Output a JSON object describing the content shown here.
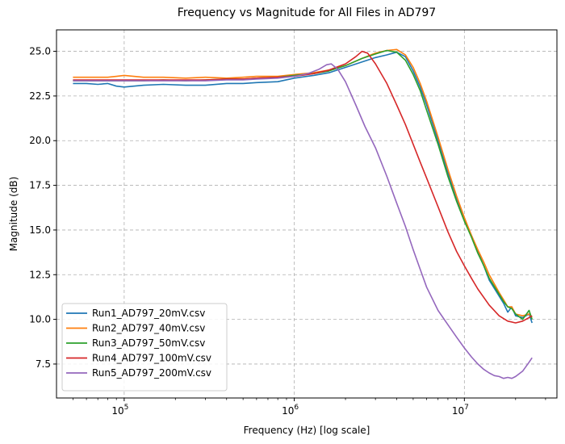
{
  "chart_data": {
    "type": "line",
    "title": "Frequency vs Magnitude for All Files in AD797",
    "xlabel": "Frequency (Hz) [log scale]",
    "ylabel": "Magnitude (dB)",
    "xscale": "log",
    "xlim": [
      40000,
      35000000
    ],
    "ylim": [
      5.6,
      26.2
    ],
    "grid": true,
    "legend_position": "lower-left",
    "x_ticks": [
      {
        "value": 100000,
        "base": "10",
        "exp": "5"
      },
      {
        "value": 1000000,
        "base": "10",
        "exp": "6"
      },
      {
        "value": 10000000,
        "base": "10",
        "exp": "7"
      }
    ],
    "y_ticks": [
      {
        "value": 7.5,
        "label": "7.5"
      },
      {
        "value": 10.0,
        "label": "10.0"
      },
      {
        "value": 12.5,
        "label": "12.5"
      },
      {
        "value": 15.0,
        "label": "15.0"
      },
      {
        "value": 17.5,
        "label": "17.5"
      },
      {
        "value": 20.0,
        "label": "20.0"
      },
      {
        "value": 22.5,
        "label": "22.5"
      },
      {
        "value": 25.0,
        "label": "25.0"
      }
    ],
    "series": [
      {
        "name": "Run1_AD797_20mV.csv",
        "color": "#1f77b4",
        "x": [
          50000,
          60000,
          70000,
          80000,
          90000,
          100000,
          130000,
          170000,
          230000,
          300000,
          400000,
          500000,
          600000,
          800000,
          1000000,
          1300000,
          1600000,
          2000000,
          2500000,
          3000000,
          3500000,
          4000000,
          4500000,
          5000000,
          5500000,
          6000000,
          7000000,
          8000000,
          9000000,
          10000000,
          11000000,
          12000000,
          13000000,
          14000000,
          16000000,
          17000000,
          18000000,
          19000000,
          20000000,
          22000000,
          24000000,
          25000000
        ],
        "y": [
          23.2,
          23.2,
          23.15,
          23.2,
          23.05,
          23.0,
          23.1,
          23.15,
          23.1,
          23.1,
          23.2,
          23.2,
          23.25,
          23.3,
          23.5,
          23.65,
          23.8,
          24.1,
          24.4,
          24.65,
          24.8,
          24.95,
          24.7,
          23.9,
          23.0,
          22.0,
          20.0,
          18.2,
          16.7,
          15.6,
          14.7,
          13.8,
          13.0,
          12.2,
          11.3,
          10.9,
          10.4,
          10.7,
          10.2,
          10.1,
          10.3,
          9.8
        ]
      },
      {
        "name": "Run2_AD797_40mV.csv",
        "color": "#ff7f0e",
        "x": [
          50000,
          60000,
          70000,
          80000,
          90000,
          100000,
          130000,
          170000,
          230000,
          300000,
          400000,
          500000,
          600000,
          800000,
          1000000,
          1300000,
          1600000,
          2000000,
          2500000,
          3000000,
          3500000,
          4000000,
          4500000,
          5000000,
          5500000,
          6000000,
          7000000,
          8000000,
          9000000,
          10000000,
          11000000,
          12000000,
          13000000,
          14000000,
          16000000,
          17000000,
          18000000,
          19000000,
          20000000,
          22000000,
          24000000,
          25000000
        ],
        "y": [
          23.55,
          23.55,
          23.55,
          23.55,
          23.6,
          23.65,
          23.55,
          23.55,
          23.5,
          23.55,
          23.5,
          23.55,
          23.6,
          23.6,
          23.7,
          23.8,
          23.95,
          24.2,
          24.6,
          24.9,
          25.05,
          25.1,
          24.8,
          24.1,
          23.2,
          22.2,
          20.2,
          18.4,
          16.9,
          15.7,
          14.7,
          13.9,
          13.2,
          12.5,
          11.5,
          11.1,
          10.7,
          10.7,
          10.3,
          10.2,
          10.3,
          10.1
        ]
      },
      {
        "name": "Run3_AD797_50mV.csv",
        "color": "#2ca02c",
        "x": [
          50000,
          60000,
          70000,
          80000,
          90000,
          100000,
          130000,
          170000,
          230000,
          300000,
          400000,
          500000,
          600000,
          800000,
          1000000,
          1300000,
          1600000,
          2000000,
          2500000,
          3000000,
          3500000,
          4000000,
          4500000,
          5000000,
          5500000,
          6000000,
          7000000,
          8000000,
          9000000,
          10000000,
          11000000,
          12000000,
          13000000,
          14000000,
          16000000,
          17000000,
          18000000,
          19000000,
          20000000,
          22000000,
          24000000,
          25000000
        ],
        "y": [
          23.35,
          23.35,
          23.35,
          23.35,
          23.35,
          23.35,
          23.35,
          23.4,
          23.35,
          23.4,
          23.45,
          23.45,
          23.5,
          23.55,
          23.65,
          23.75,
          23.9,
          24.2,
          24.6,
          24.85,
          25.05,
          24.95,
          24.5,
          23.7,
          22.8,
          21.7,
          19.8,
          18.0,
          16.6,
          15.5,
          14.6,
          13.7,
          13.0,
          12.3,
          11.4,
          11.0,
          10.7,
          10.6,
          10.3,
          10.0,
          10.5,
          10.0
        ]
      },
      {
        "name": "Run4_AD797_100mV.csv",
        "color": "#d62728",
        "x": [
          50000,
          60000,
          70000,
          80000,
          90000,
          100000,
          130000,
          170000,
          230000,
          300000,
          400000,
          500000,
          600000,
          800000,
          1000000,
          1300000,
          1600000,
          2000000,
          2300000,
          2500000,
          2700000,
          3000000,
          3500000,
          4000000,
          4500000,
          5000000,
          5500000,
          6000000,
          7000000,
          8000000,
          9000000,
          10000000,
          11000000,
          12000000,
          14000000,
          16000000,
          18000000,
          20000000,
          22000000,
          24000000,
          25000000
        ],
        "y": [
          23.4,
          23.4,
          23.4,
          23.4,
          23.4,
          23.4,
          23.4,
          23.4,
          23.4,
          23.4,
          23.45,
          23.45,
          23.5,
          23.55,
          23.6,
          23.75,
          23.95,
          24.3,
          24.7,
          25.0,
          24.9,
          24.3,
          23.2,
          22.0,
          20.9,
          19.8,
          18.8,
          17.9,
          16.3,
          14.9,
          13.8,
          13.0,
          12.3,
          11.7,
          10.8,
          10.2,
          9.9,
          9.8,
          9.9,
          10.1,
          10.2
        ]
      },
      {
        "name": "Run5_AD797_200mV.csv",
        "color": "#9467bd",
        "x": [
          50000,
          60000,
          70000,
          80000,
          90000,
          100000,
          130000,
          170000,
          230000,
          300000,
          400000,
          500000,
          600000,
          800000,
          1000000,
          1200000,
          1400000,
          1550000,
          1650000,
          1800000,
          2000000,
          2300000,
          2600000,
          3000000,
          3500000,
          4000000,
          4500000,
          5000000,
          5500000,
          6000000,
          7000000,
          8000000,
          9000000,
          10000000,
          11000000,
          12000000,
          13000000,
          14000000,
          15000000,
          16000000,
          17000000,
          18000000,
          19000000,
          20000000,
          22000000,
          24000000,
          25000000
        ],
        "y": [
          23.35,
          23.35,
          23.35,
          23.35,
          23.35,
          23.35,
          23.35,
          23.35,
          23.35,
          23.35,
          23.4,
          23.4,
          23.45,
          23.5,
          23.6,
          23.75,
          24.0,
          24.25,
          24.3,
          24.0,
          23.3,
          22.0,
          20.8,
          19.6,
          18.0,
          16.5,
          15.2,
          13.9,
          12.8,
          11.8,
          10.5,
          9.7,
          9.0,
          8.4,
          7.9,
          7.5,
          7.2,
          7.0,
          6.85,
          6.8,
          6.7,
          6.75,
          6.7,
          6.8,
          7.1,
          7.6,
          7.85
        ]
      }
    ]
  }
}
